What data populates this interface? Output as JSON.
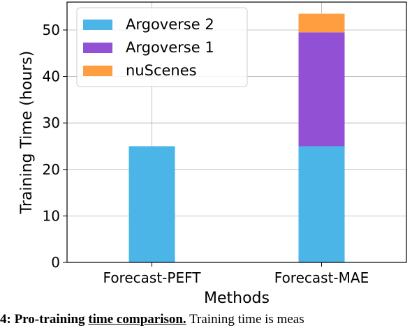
{
  "chart_data": {
    "type": "bar",
    "stacked": true,
    "categories": [
      "Forecast-PEFT",
      "Forecast-MAE"
    ],
    "series": [
      {
        "name": "Argoverse 2",
        "values": [
          25,
          25
        ],
        "color": "#4ab5e6"
      },
      {
        "name": "Argoverse 1",
        "values": [
          0,
          24.5
        ],
        "color": "#9250d4"
      },
      {
        "name": "nuScenes",
        "values": [
          0,
          4
        ],
        "color": "#ff9e40"
      }
    ],
    "xlabel": "Methods",
    "ylabel": "Training Time (hours)",
    "ylim": [
      0,
      56
    ],
    "yticks": [
      0,
      10,
      20,
      30,
      40,
      50
    ],
    "grid": true,
    "legend_position": "top-left"
  },
  "caption": {
    "label": "4: Pro-training",
    "title_tail": "time comparison.",
    "text": "Training time is meas"
  }
}
